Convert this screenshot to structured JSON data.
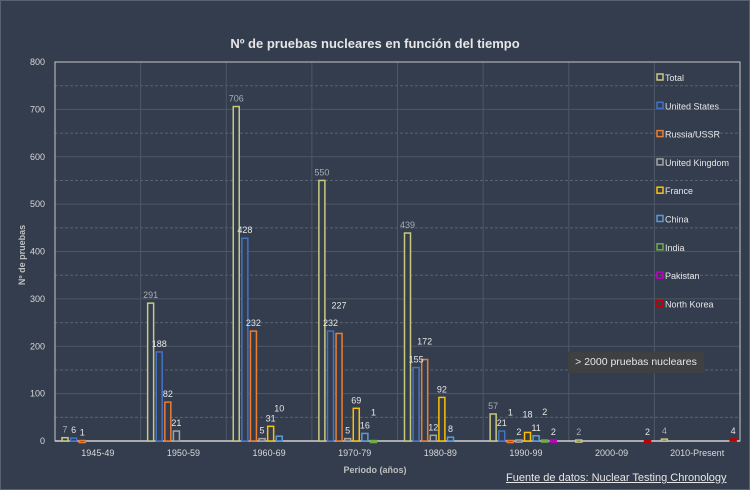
{
  "chart_data": {
    "type": "bar",
    "title": "Nº de pruebas nucleares en función del tiempo",
    "xlabel": "Periodo (años)",
    "ylabel": "Nº de pruebas",
    "ylim": [
      0,
      800
    ],
    "yticks": [
      0,
      100,
      200,
      300,
      400,
      500,
      600,
      700,
      800
    ],
    "grid": true,
    "legend_position": "right",
    "categories": [
      "1945-49",
      "1950-59",
      "1960-69",
      "1970-79",
      "1980-89",
      "1990-99",
      "2000-09",
      "2010-Present"
    ],
    "series": [
      {
        "name": "Total",
        "color": "#c9c97e",
        "values": [
          7,
          291,
          706,
          550,
          439,
          57,
          2,
          4
        ]
      },
      {
        "name": "United States",
        "color": "#4472c4",
        "values": [
          6,
          188,
          428,
          232,
          155,
          21,
          0,
          0
        ]
      },
      {
        "name": "Russia/USSR",
        "color": "#ed7d31",
        "values": [
          1,
          82,
          232,
          227,
          172,
          1,
          0,
          0
        ]
      },
      {
        "name": "United Kingdom",
        "color": "#a5a5a5",
        "values": [
          0,
          21,
          5,
          5,
          12,
          2,
          0,
          0
        ]
      },
      {
        "name": "France",
        "color": "#ffc000",
        "values": [
          0,
          0,
          31,
          69,
          92,
          18,
          0,
          0
        ]
      },
      {
        "name": "China",
        "color": "#5b9bd5",
        "values": [
          0,
          0,
          10,
          16,
          8,
          11,
          0,
          0
        ]
      },
      {
        "name": "India",
        "color": "#70ad47",
        "values": [
          0,
          0,
          0,
          1,
          0,
          2,
          0,
          0
        ]
      },
      {
        "name": "Pakistan",
        "color": "#c000c0",
        "values": [
          0,
          0,
          0,
          0,
          0,
          2,
          0,
          0
        ]
      },
      {
        "name": "North Korea",
        "color": "#c00000",
        "values": [
          0,
          0,
          0,
          0,
          0,
          0,
          2,
          4
        ]
      }
    ],
    "annotation": "> 2000 pruebas nucleares",
    "source": "Fuente de datos: Nuclear Testing Chronology"
  }
}
